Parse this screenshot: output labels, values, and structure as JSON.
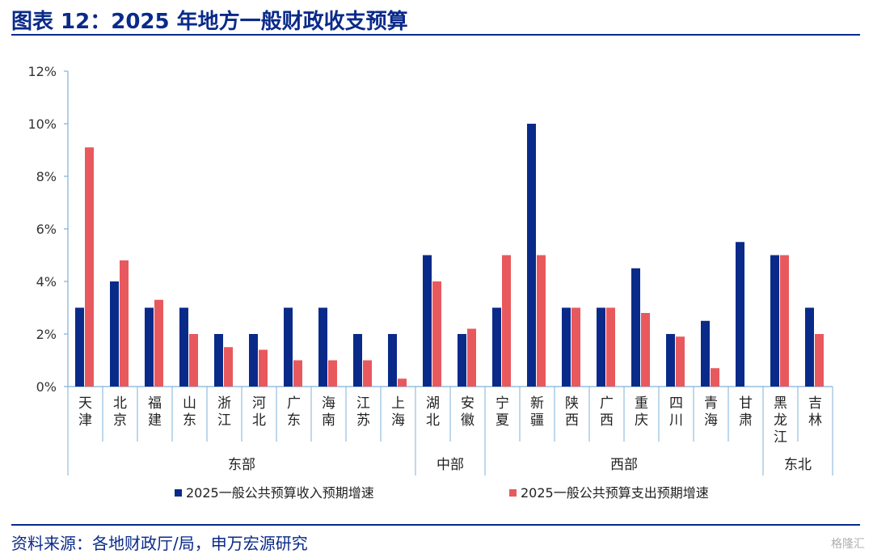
{
  "header": {
    "title": "图表 12：2025 年地方一般财政收支预算"
  },
  "footer": {
    "source": "资料来源：各地财政厅/局，申万宏源研究",
    "watermark": "格隆汇"
  },
  "colors": {
    "income": "#0a2a8a",
    "expense": "#e8595e",
    "accent": "#0a2a8a"
  },
  "chart_data": {
    "type": "bar",
    "title": "",
    "xlabel": "",
    "ylabel": "",
    "ylim": [
      0,
      12
    ],
    "y_ticks": [
      "0%",
      "2%",
      "4%",
      "6%",
      "8%",
      "10%",
      "12%"
    ],
    "categories": [
      "天津",
      "北京",
      "福建",
      "山东",
      "浙江",
      "河北",
      "广东",
      "海南",
      "江苏",
      "上海",
      "湖北",
      "安徽",
      "宁夏",
      "新疆",
      "陕西",
      "广西",
      "重庆",
      "四川",
      "青海",
      "甘肃",
      "黑龙江",
      "吉林"
    ],
    "category_labels": [
      [
        "天",
        "津"
      ],
      [
        "北",
        "京"
      ],
      [
        "福",
        "建"
      ],
      [
        "山",
        "东"
      ],
      [
        "浙",
        "江"
      ],
      [
        "河",
        "北"
      ],
      [
        "广",
        "东"
      ],
      [
        "海",
        "南"
      ],
      [
        "江",
        "苏"
      ],
      [
        "上",
        "海"
      ],
      [
        "湖",
        "北"
      ],
      [
        "安",
        "徽"
      ],
      [
        "宁",
        "夏"
      ],
      [
        "新",
        "疆"
      ],
      [
        "陕",
        "西"
      ],
      [
        "广",
        "西"
      ],
      [
        "重",
        "庆"
      ],
      [
        "四",
        "川"
      ],
      [
        "青",
        "海"
      ],
      [
        "甘",
        "肃"
      ],
      [
        "黑",
        "龙",
        "江"
      ],
      [
        "吉",
        "林"
      ]
    ],
    "groups": [
      {
        "name": "东部",
        "start": 0,
        "count": 10
      },
      {
        "name": "中部",
        "start": 10,
        "count": 2
      },
      {
        "name": "西部",
        "start": 12,
        "count": 8
      },
      {
        "name": "东北",
        "start": 20,
        "count": 2
      }
    ],
    "series": [
      {
        "name": "2025一般公共预算收入预期增速",
        "color": "#0a2a8a",
        "values": [
          3,
          4,
          3,
          3,
          2,
          2,
          3,
          3,
          2,
          2,
          5,
          2,
          3,
          10,
          3,
          3,
          4.5,
          2,
          2.5,
          5.5,
          5,
          3
        ]
      },
      {
        "name": "2025一般公共预算支出预期增速",
        "color": "#e8595e",
        "values": [
          9.1,
          4.8,
          3.3,
          2,
          1.5,
          1.4,
          1,
          1,
          1,
          0.3,
          4,
          2.2,
          5,
          5,
          3,
          3,
          2.8,
          1.9,
          0.7,
          null,
          5,
          2
        ]
      }
    ],
    "legend_position": "bottom",
    "grid": false
  }
}
